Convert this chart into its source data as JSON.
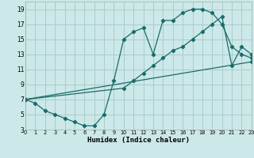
{
  "xlabel": "Humidex (Indice chaleur)",
  "xlim": [
    0,
    23
  ],
  "ylim": [
    3,
    20
  ],
  "bg_color": "#cce8e8",
  "grid_color": "#aacccc",
  "line_color": "#1a6b6b",
  "line1_x": [
    0,
    1,
    2,
    3,
    4,
    5,
    6,
    7,
    8,
    9,
    10,
    11,
    12,
    13,
    14,
    15,
    16,
    17,
    18,
    19,
    20,
    21,
    22,
    23
  ],
  "line1_y": [
    7,
    6.5,
    5.5,
    5,
    4.5,
    4,
    3.5,
    3.5,
    5,
    9.5,
    15,
    16,
    16.5,
    13,
    17.5,
    17.5,
    18.5,
    19,
    19,
    18.5,
    17,
    14,
    13,
    12.5
  ],
  "line2_x": [
    0,
    10,
    11,
    12,
    13,
    14,
    15,
    16,
    17,
    18,
    19,
    20,
    21,
    22,
    23
  ],
  "line2_y": [
    7,
    8.5,
    9.5,
    10.5,
    11.5,
    12.5,
    13.5,
    14,
    15,
    16,
    17,
    18,
    11.5,
    14,
    13
  ],
  "line3_x": [
    0,
    23
  ],
  "line3_y": [
    7,
    12
  ],
  "xticks": [
    0,
    1,
    2,
    3,
    4,
    5,
    6,
    7,
    8,
    9,
    10,
    11,
    12,
    13,
    14,
    15,
    16,
    17,
    18,
    19,
    20,
    21,
    22,
    23
  ],
  "yticks": [
    3,
    5,
    7,
    9,
    11,
    13,
    15,
    17,
    19
  ]
}
